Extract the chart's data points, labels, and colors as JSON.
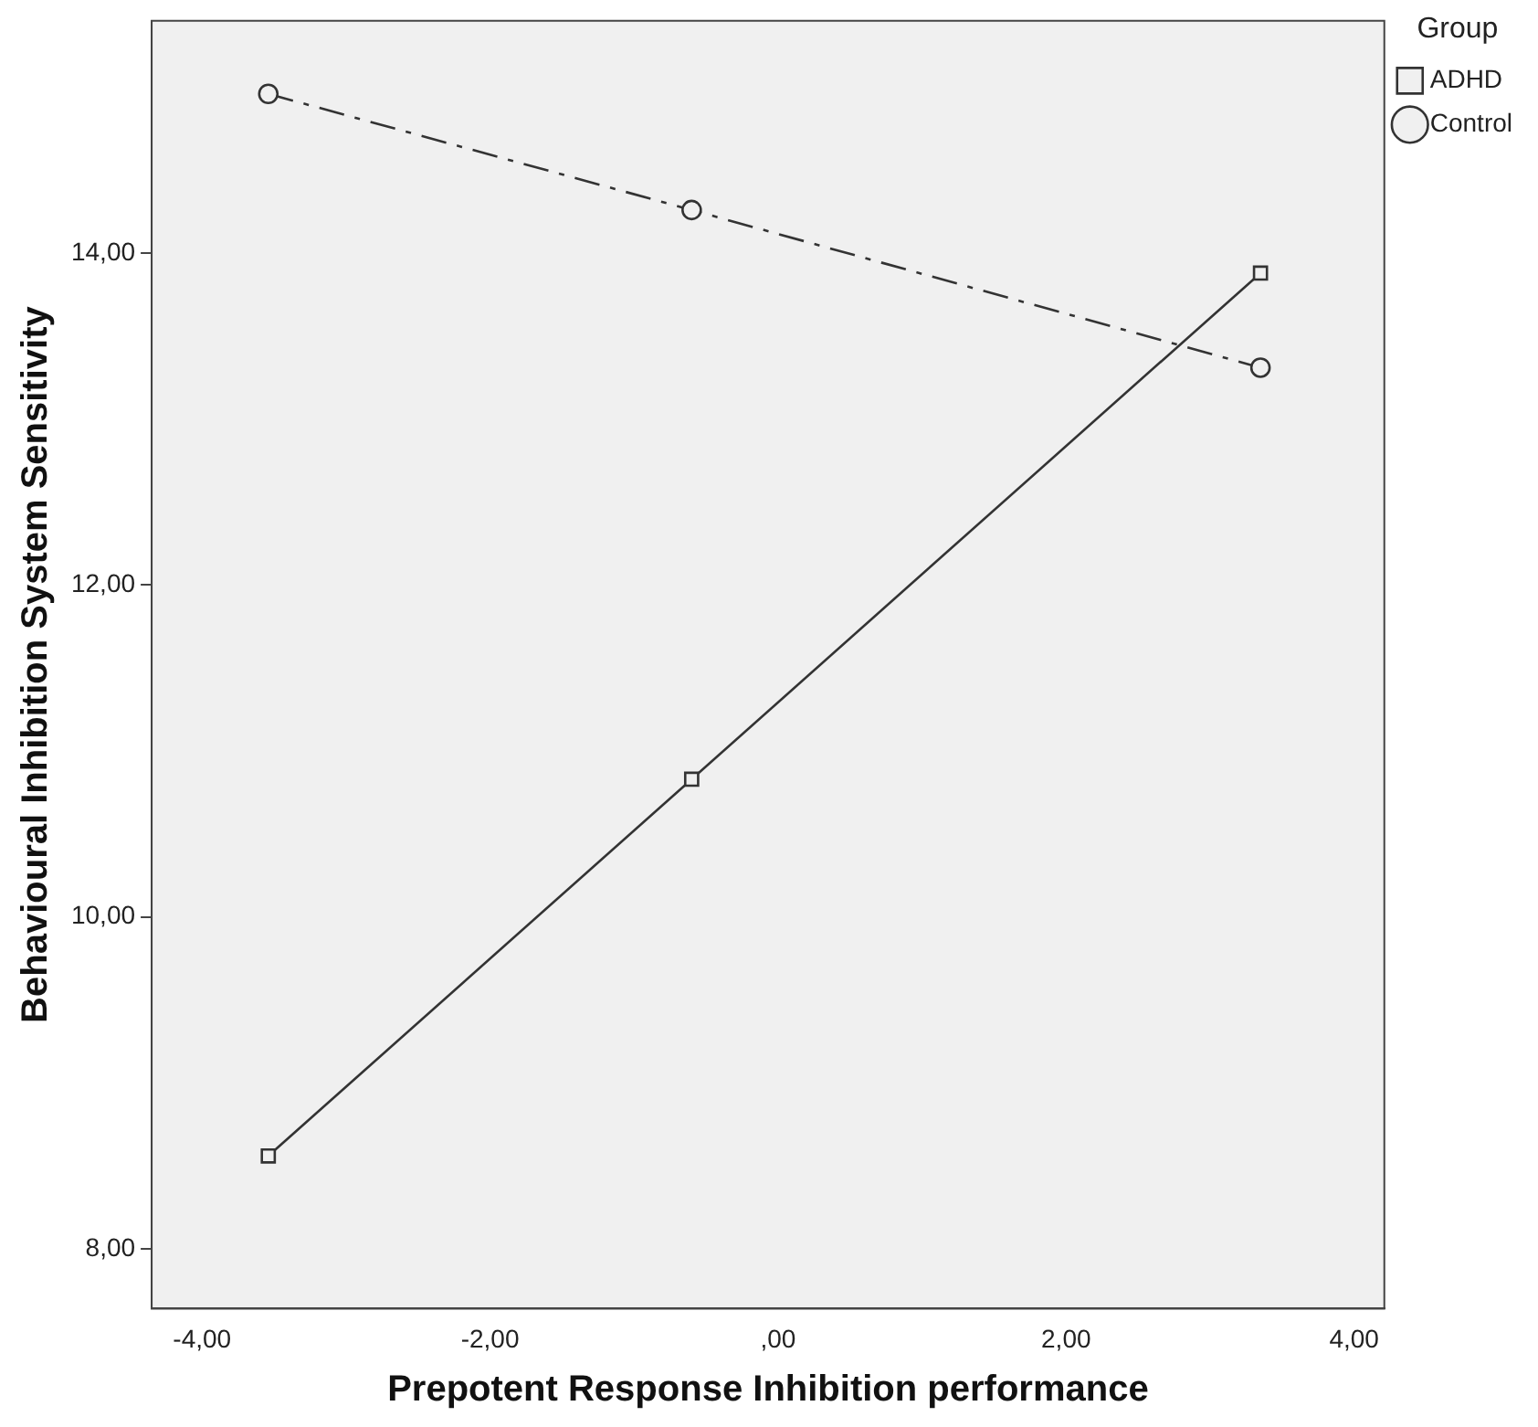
{
  "chart_data": {
    "type": "line",
    "xlabel": "Prepotent Response Inhibition performance",
    "ylabel": "Behavioural Inhibition System Sensitivity",
    "legend_title": "Group",
    "legend": "right",
    "xlim": [
      -4.35,
      4.21
    ],
    "xticks": [
      {
        "value": -4,
        "label": "-4,00"
      },
      {
        "value": -2,
        "label": "-2,00"
      },
      {
        "value": 0,
        "label": ",00"
      },
      {
        "value": 2,
        "label": "2,00"
      },
      {
        "value": 4,
        "label": "4,00"
      }
    ],
    "ylim": [
      7.64,
      15.4
    ],
    "yticks": [
      {
        "value": 8,
        "label": "8,00"
      },
      {
        "value": 10,
        "label": "10,00"
      },
      {
        "value": 12,
        "label": "12,00"
      },
      {
        "value": 14,
        "label": "14,00"
      }
    ],
    "grid": false,
    "series": [
      {
        "name": "ADHD",
        "color": "#333333",
        "x": [
          -3.54,
          -0.6,
          3.35
        ],
        "values": [
          8.56,
          10.83,
          13.88
        ],
        "marker": "square",
        "line_style": "solid"
      },
      {
        "name": "Control",
        "color": "#333333",
        "x": [
          -3.54,
          -0.6,
          3.35
        ],
        "values": [
          14.96,
          14.26,
          13.31
        ],
        "marker": "circle",
        "line_style": "dashed"
      }
    ]
  }
}
